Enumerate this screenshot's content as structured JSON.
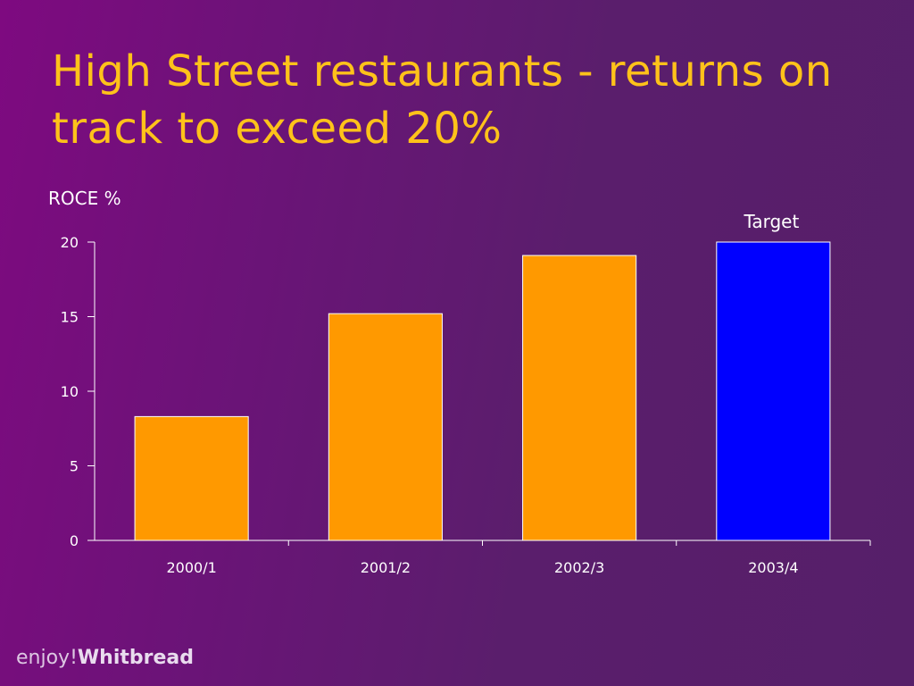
{
  "slide": {
    "title": "High Street restaurants - returns on track to exceed 20%",
    "brand_prefix": "enjoy!",
    "brand_name": "Whitbread"
  },
  "chart_data": {
    "type": "bar",
    "ylabel": "ROCE %",
    "xlabel": "",
    "ylim": [
      0,
      20
    ],
    "yticks": [
      0,
      5,
      10,
      15,
      20
    ],
    "categories": [
      "2000/1",
      "2001/2",
      "2002/3",
      "2003/4"
    ],
    "values": [
      8.3,
      15.2,
      19.1,
      20
    ],
    "bar_colors": [
      "#ff9900",
      "#ff9900",
      "#ff9900",
      "#0000ff"
    ],
    "annotations": [
      {
        "category": "2003/4",
        "text": "Target"
      }
    ],
    "grid": false,
    "legend": "none"
  },
  "colors": {
    "title": "#ffc21a",
    "text": "#ffffff",
    "axis": "#ffffff",
    "bar_border": "#ffffff"
  }
}
